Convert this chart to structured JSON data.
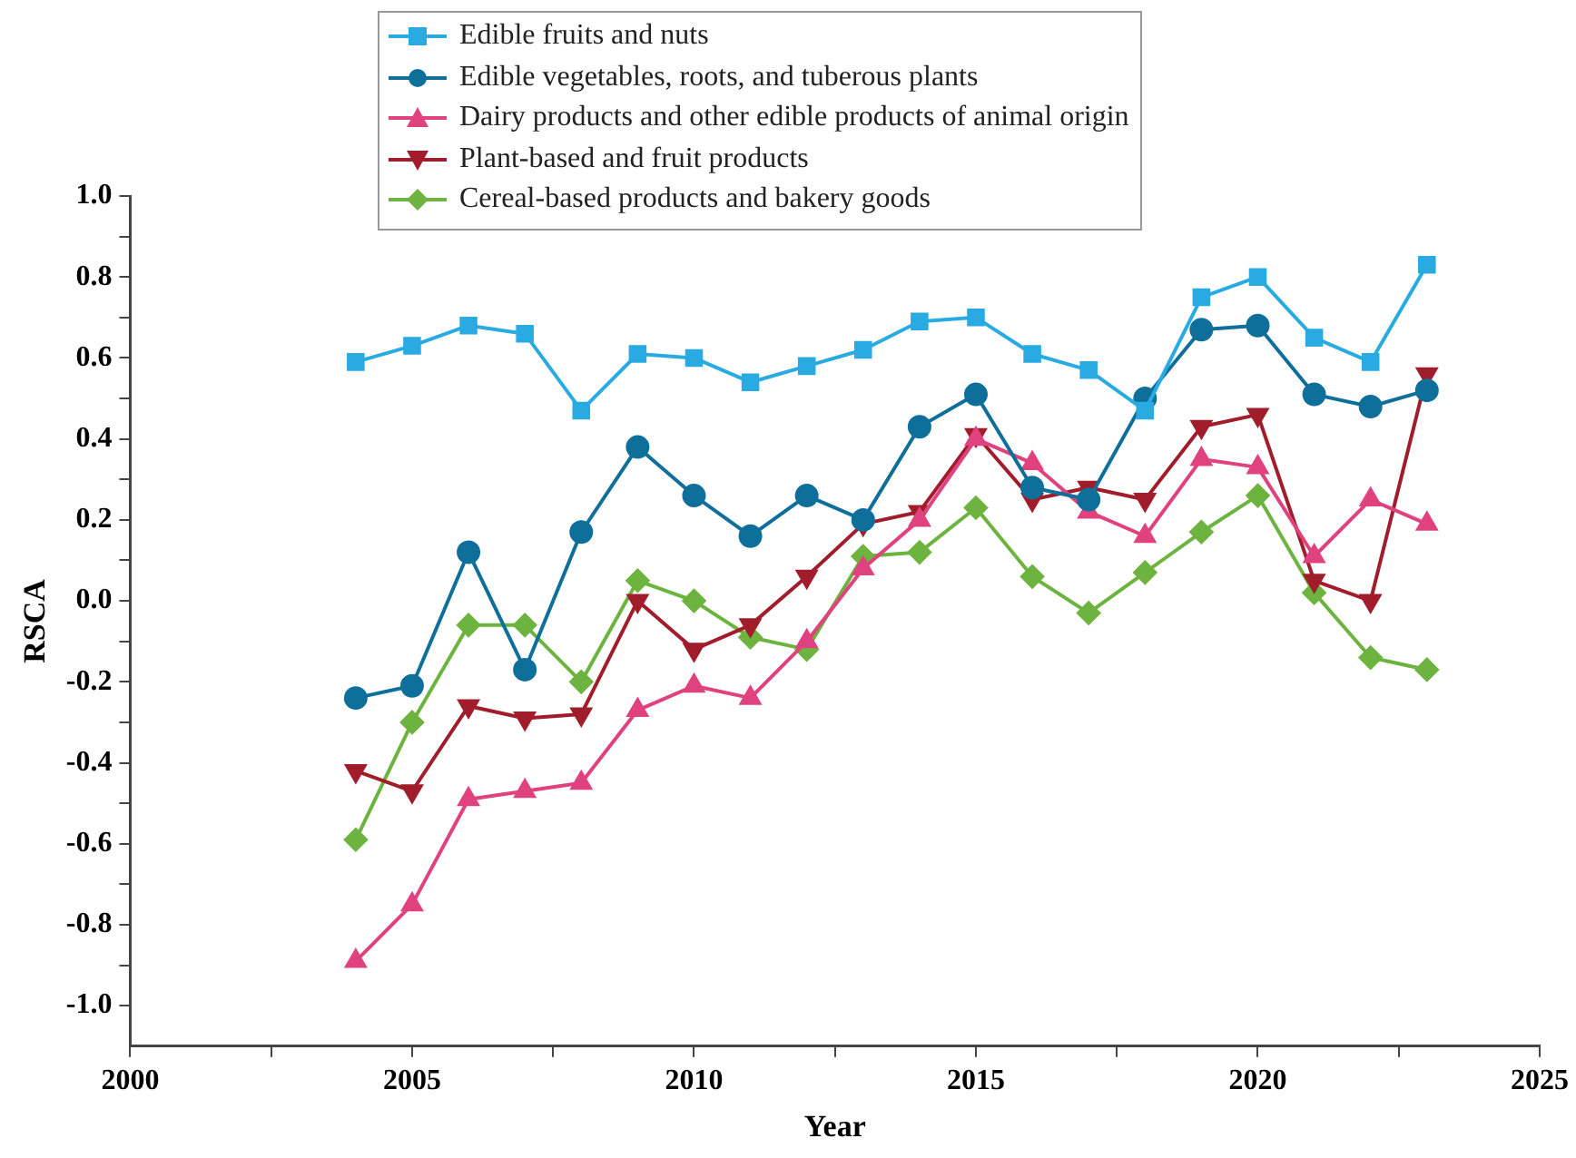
{
  "chart_data": {
    "type": "line",
    "xlabel": "Year",
    "ylabel": "RSCA",
    "x": [
      2004,
      2005,
      2006,
      2007,
      2008,
      2009,
      2010,
      2011,
      2012,
      2013,
      2014,
      2015,
      2016,
      2017,
      2018,
      2019,
      2020,
      2021,
      2022,
      2023
    ],
    "xlim": [
      2000,
      2025
    ],
    "xticks": [
      2000,
      {
        "value": 2002.5,
        "label": null
      },
      2005,
      {
        "value": 2007.5,
        "label": null
      },
      2010,
      {
        "value": 2012.5,
        "label": null
      },
      2015,
      {
        "value": 2017.5,
        "label": null
      },
      2020,
      {
        "value": 2022.5,
        "label": null
      },
      2025
    ],
    "ylim": [
      -1.1,
      1.0
    ],
    "yticks": [
      {
        "value": -1,
        "label": "-1.0"
      },
      {
        "value": -0.9,
        "label": null
      },
      -0.8,
      {
        "value": -0.7,
        "label": null
      },
      -0.6,
      {
        "value": -0.5,
        "label": null
      },
      -0.4,
      {
        "value": -0.3,
        "label": null
      },
      -0.2,
      {
        "value": -0.1,
        "label": null
      },
      {
        "value": 0,
        "label": "0.0"
      },
      {
        "value": 0.1,
        "label": null
      },
      0.2,
      {
        "value": 0.3,
        "label": null
      },
      0.4,
      {
        "value": 0.5,
        "label": null
      },
      0.6,
      {
        "value": 0.7,
        "label": null
      },
      0.8,
      {
        "value": 0.9,
        "label": null
      },
      {
        "value": 1,
        "label": "1.0"
      }
    ],
    "grid": false,
    "legend": "top",
    "line_style": "solid",
    "series": [
      {
        "name": "Edible fruits and nuts",
        "color": "#29abe2",
        "marker": "square",
        "values": [
          0.59,
          0.63,
          0.68,
          0.66,
          0.47,
          0.61,
          0.6,
          0.54,
          0.58,
          0.62,
          0.69,
          0.7,
          0.61,
          0.57,
          0.47,
          0.75,
          0.8,
          0.65,
          0.59,
          0.83
        ]
      },
      {
        "name": "Edible vegetables, roots, and tuberous plants",
        "color": "#0e6f9a",
        "marker": "circle",
        "values": [
          -0.24,
          -0.21,
          0.12,
          -0.17,
          0.17,
          0.38,
          0.26,
          0.16,
          0.26,
          0.2,
          0.43,
          0.51,
          0.28,
          0.25,
          0.5,
          0.67,
          0.68,
          0.51,
          0.48,
          0.52
        ]
      },
      {
        "name": "Dairy products and other edible products of animal origin",
        "color": "#e0427f",
        "marker": "triangle",
        "values": [
          -0.89,
          -0.75,
          -0.49,
          -0.47,
          -0.45,
          -0.27,
          -0.21,
          -0.24,
          -0.1,
          0.08,
          0.2,
          0.4,
          0.34,
          0.22,
          0.16,
          0.35,
          0.33,
          0.11,
          0.25,
          0.19
        ]
      },
      {
        "name": "Plant-based and fruit products",
        "color": "#a11d2b",
        "marker": "triangle-down",
        "values": [
          -0.42,
          -0.47,
          -0.26,
          -0.29,
          -0.28,
          0.0,
          -0.12,
          -0.06,
          0.06,
          0.19,
          0.22,
          0.41,
          0.25,
          0.28,
          0.25,
          0.43,
          0.46,
          0.05,
          0.0,
          0.56
        ]
      },
      {
        "name": "Cereal-based products and bakery goods",
        "color": "#6db33f",
        "marker": "diamond",
        "values": [
          -0.59,
          -0.3,
          -0.06,
          -0.06,
          -0.2,
          0.05,
          0.0,
          -0.09,
          -0.12,
          0.11,
          0.12,
          0.23,
          0.06,
          -0.03,
          0.07,
          0.17,
          0.26,
          0.02,
          -0.14,
          -0.17
        ]
      }
    ]
  }
}
